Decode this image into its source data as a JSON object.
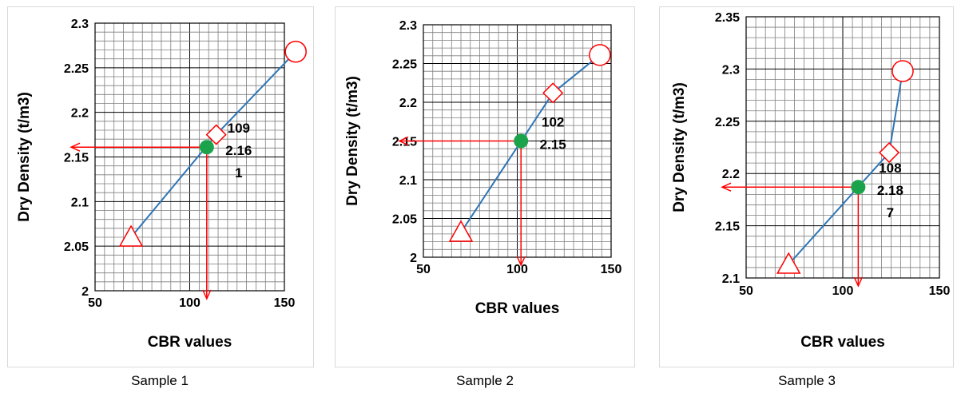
{
  "chart_data": [
    {
      "type": "line",
      "caption": "Sample 1",
      "xlabel": "CBR values",
      "ylabel": "Dry Density (t/m3)",
      "xlim": [
        50,
        150
      ],
      "ylim": [
        2.0,
        2.3
      ],
      "xticks": [
        "50",
        "100",
        "150"
      ],
      "yticks": [
        "2",
        "2.05",
        "2.1",
        "2.15",
        "2.2",
        "2.25",
        "2.3"
      ],
      "grid": true,
      "line_color": "#2e75b6",
      "marker_color": "#ff0000",
      "result_color": "#1aa34a",
      "points": [
        {
          "x": 69,
          "y": 2.06,
          "marker": "triangle"
        },
        {
          "x": 114,
          "y": 2.175,
          "marker": "diamond"
        },
        {
          "x": 156,
          "y": 2.268,
          "marker": "circle"
        }
      ],
      "result_point": {
        "x": 109,
        "y": 2.161
      },
      "annotation": [
        "109",
        "2.16",
        "1"
      ]
    },
    {
      "type": "line",
      "caption": "Sample 2",
      "xlabel": "CBR values",
      "ylabel": "Dry Density (t/m3)",
      "xlim": [
        50,
        150
      ],
      "ylim": [
        2.0,
        2.3
      ],
      "xticks": [
        "50",
        "100",
        "150"
      ],
      "yticks": [
        "2",
        "2.05",
        "2.1",
        "2.15",
        "2.2",
        "2.25",
        "2.3"
      ],
      "grid": true,
      "line_color": "#2e75b6",
      "marker_color": "#ff0000",
      "result_color": "#1aa34a",
      "points": [
        {
          "x": 70,
          "y": 2.032,
          "marker": "triangle"
        },
        {
          "x": 119,
          "y": 2.212,
          "marker": "diamond"
        },
        {
          "x": 144,
          "y": 2.261,
          "marker": "circle"
        }
      ],
      "result_point": {
        "x": 102,
        "y": 2.15
      },
      "annotation": [
        "102",
        "2.15"
      ]
    },
    {
      "type": "line",
      "caption": "Sample 3",
      "xlabel": "CBR values",
      "ylabel": "Dry Density (t/m3)",
      "xlim": [
        50,
        150
      ],
      "ylim": [
        2.1,
        2.35
      ],
      "xticks": [
        "50",
        "100",
        "150"
      ],
      "yticks": [
        "2.1",
        "2.15",
        "2.2",
        "2.25",
        "2.3",
        "2.35"
      ],
      "grid": true,
      "line_color": "#2e75b6",
      "marker_color": "#ff0000",
      "result_color": "#1aa34a",
      "points": [
        {
          "x": 72,
          "y": 2.113,
          "marker": "triangle"
        },
        {
          "x": 124,
          "y": 2.22,
          "marker": "diamond"
        },
        {
          "x": 131,
          "y": 2.298,
          "marker": "circle"
        }
      ],
      "result_point": {
        "x": 108,
        "y": 2.187
      },
      "annotation": [
        "108",
        "2.18",
        "7"
      ]
    }
  ]
}
